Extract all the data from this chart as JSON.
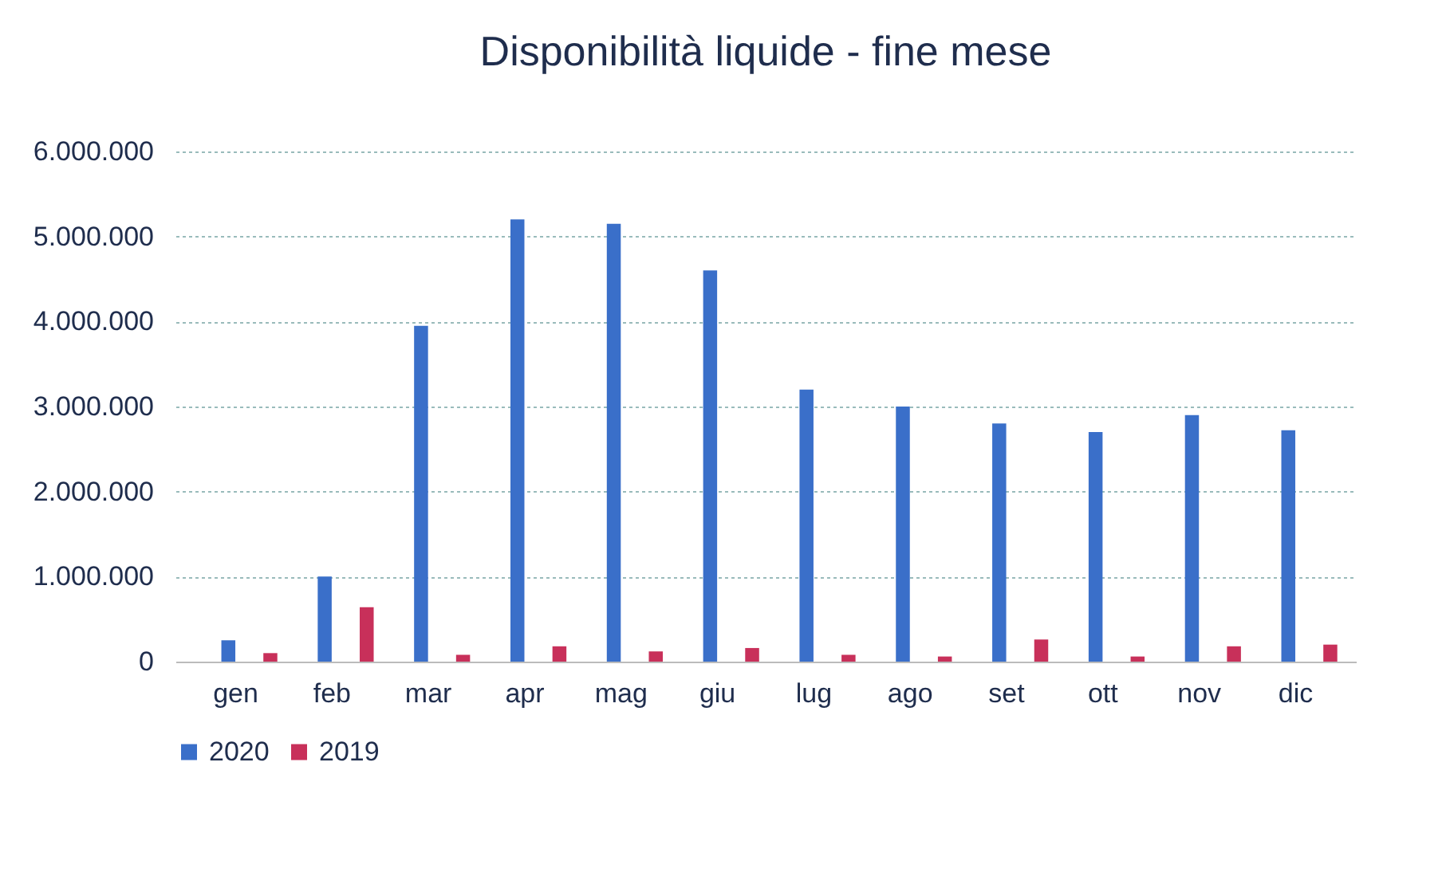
{
  "chart_data": {
    "type": "bar",
    "title": "Disponibilità liquide - fine mese",
    "categories": [
      "gen",
      "feb",
      "mar",
      "apr",
      "mag",
      "giu",
      "lug",
      "ago",
      "set",
      "ott",
      "nov",
      "dic"
    ],
    "series": [
      {
        "name": "2020",
        "color": "#3a6fc9",
        "values": [
          250000,
          1000000,
          3950000,
          5200000,
          5150000,
          4600000,
          3200000,
          3000000,
          2800000,
          2700000,
          2900000,
          2720000
        ]
      },
      {
        "name": "2019",
        "color": "#c8305a",
        "values": [
          100000,
          640000,
          80000,
          180000,
          120000,
          160000,
          80000,
          60000,
          260000,
          60000,
          180000,
          200000
        ]
      }
    ],
    "ylim": [
      0,
      6000000
    ],
    "yticks": [
      0,
      {
        "value": 1000000,
        "label": "1.000.000"
      },
      {
        "value": 2000000,
        "label": "2.000.000"
      },
      {
        "value": 3000000,
        "label": "3.000.000"
      },
      {
        "value": 4000000,
        "label": "4.000.000"
      },
      {
        "value": 5000000,
        "label": "5.000.000"
      },
      {
        "value": 6000000,
        "label": "6.000.000"
      }
    ],
    "grid": "y",
    "legend": "bottom"
  }
}
